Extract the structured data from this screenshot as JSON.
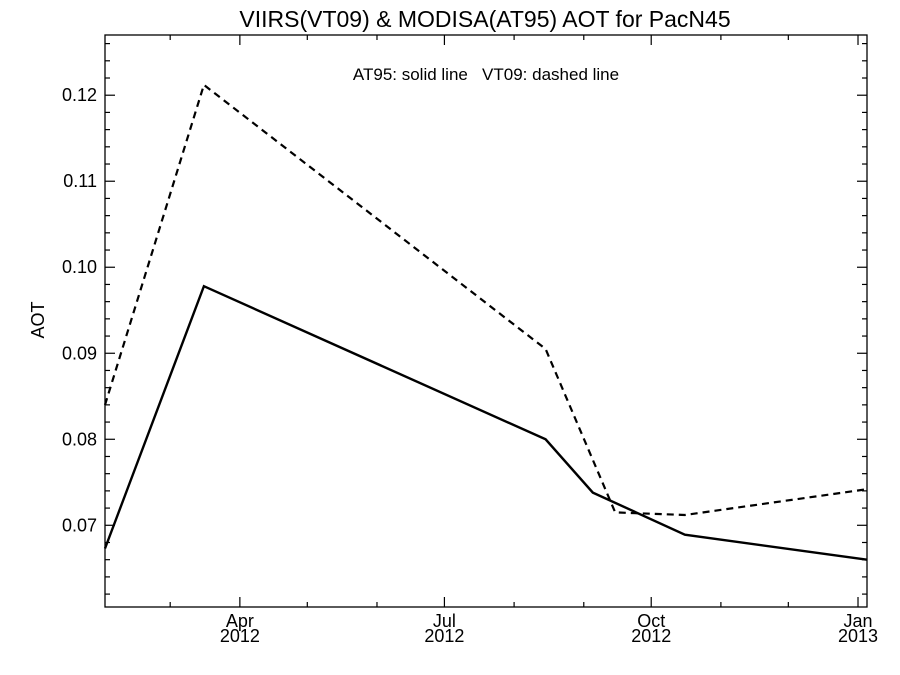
{
  "chart_data": {
    "type": "line",
    "title": "VIIRS(VT09) & MODISA(AT95)  AOT for PacN45",
    "annotation": "AT95: solid line   VT09: dashed line",
    "ylabel": "AOT",
    "xlabel": "",
    "ylim": [
      0.0605,
      0.127
    ],
    "xlim": [
      "2012-02-01",
      "2013-01-05"
    ],
    "yticks": [
      0.07,
      0.08,
      0.09,
      0.1,
      0.11,
      0.12
    ],
    "ytick_labels": [
      "0.07",
      "0.08",
      "0.09",
      "0.10",
      "0.11",
      "0.12"
    ],
    "xticks_major": [
      {
        "date": "2012-04-01",
        "label": [
          "Apr",
          "2012"
        ]
      },
      {
        "date": "2012-07-01",
        "label": [
          "Jul",
          "2012"
        ]
      },
      {
        "date": "2012-10-01",
        "label": [
          "Oct",
          "2012"
        ]
      },
      {
        "date": "2013-01-01",
        "label": [
          "Jan",
          "2013"
        ]
      }
    ],
    "xticks_minor": [
      "2012-03-01",
      "2012-05-01",
      "2012-06-01",
      "2012-08-01",
      "2012-09-01",
      "2012-11-01",
      "2012-12-01"
    ],
    "series": [
      {
        "name": "AT95",
        "style": "solid",
        "points": [
          {
            "x": "2012-02-01",
            "y": 0.0673
          },
          {
            "x": "2012-03-16",
            "y": 0.0978
          },
          {
            "x": "2012-08-15",
            "y": 0.08
          },
          {
            "x": "2012-09-05",
            "y": 0.0738
          },
          {
            "x": "2012-10-16",
            "y": 0.0689
          },
          {
            "x": "2013-01-05",
            "y": 0.066
          }
        ]
      },
      {
        "name": "VT09",
        "style": "dashed",
        "points": [
          {
            "x": "2012-02-01",
            "y": 0.084
          },
          {
            "x": "2012-03-16",
            "y": 0.1212
          },
          {
            "x": "2012-08-15",
            "y": 0.0905
          },
          {
            "x": "2012-09-15",
            "y": 0.0715
          },
          {
            "x": "2012-10-16",
            "y": 0.0712
          },
          {
            "x": "2013-01-05",
            "y": 0.0742
          }
        ]
      }
    ],
    "grid": false,
    "legend": "none"
  }
}
